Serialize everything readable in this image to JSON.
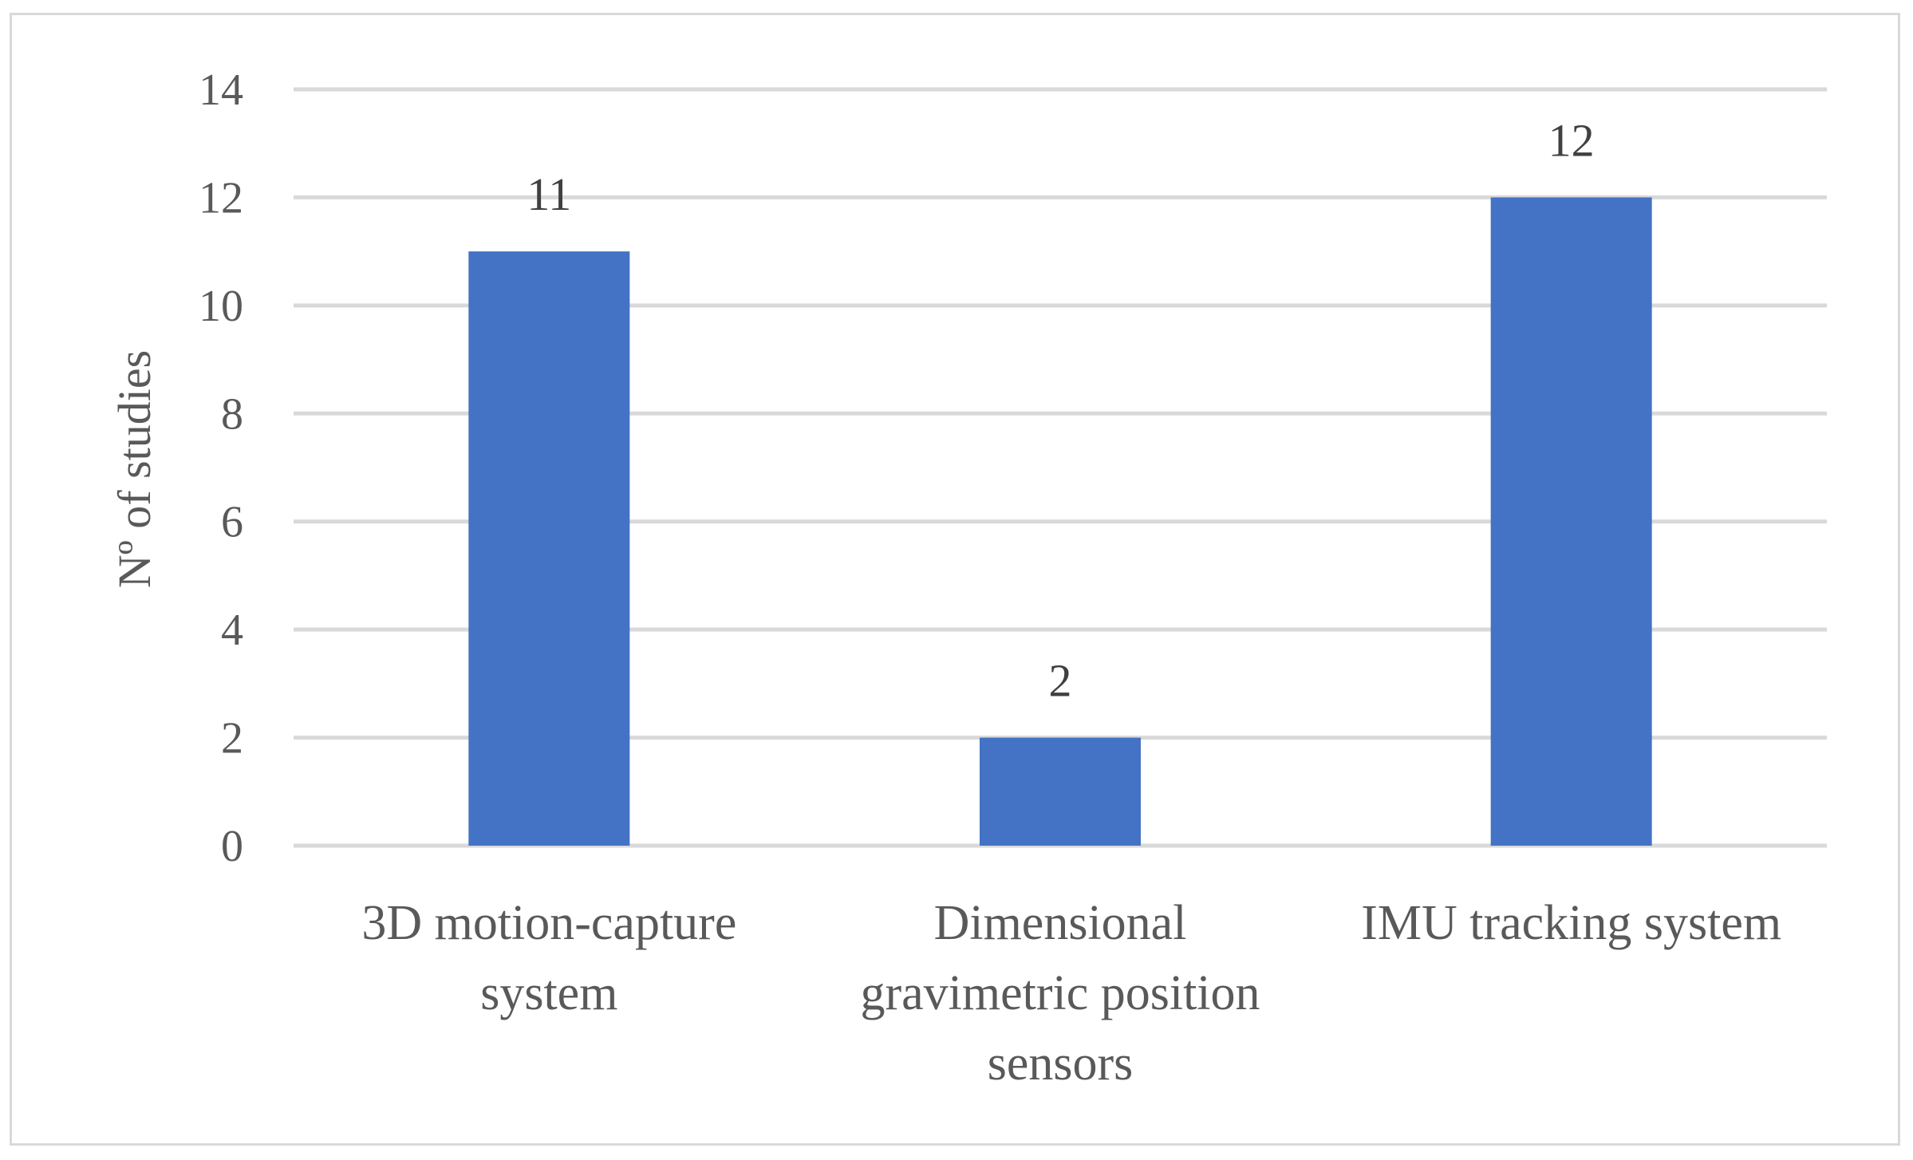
{
  "chart_data": {
    "type": "bar",
    "title": "",
    "xlabel": "",
    "ylabel": "Nº of studies",
    "categories": [
      [
        "3D motion-capture",
        "system"
      ],
      [
        "Dimensional",
        "gravimetric position",
        "sensors"
      ],
      [
        "IMU tracking system"
      ]
    ],
    "values": [
      11,
      2,
      12
    ],
    "data_labels": [
      "11",
      "2",
      "12"
    ],
    "ylim": [
      0,
      14
    ],
    "yticks": [
      0,
      2,
      4,
      6,
      8,
      10,
      12,
      14
    ],
    "grid": true,
    "legend": "none",
    "colors": {
      "bar": "#4472C4",
      "grid": "#d9d9d9",
      "text": "#595959",
      "data_label": "#404040",
      "frame": "#d9d9d9"
    }
  }
}
